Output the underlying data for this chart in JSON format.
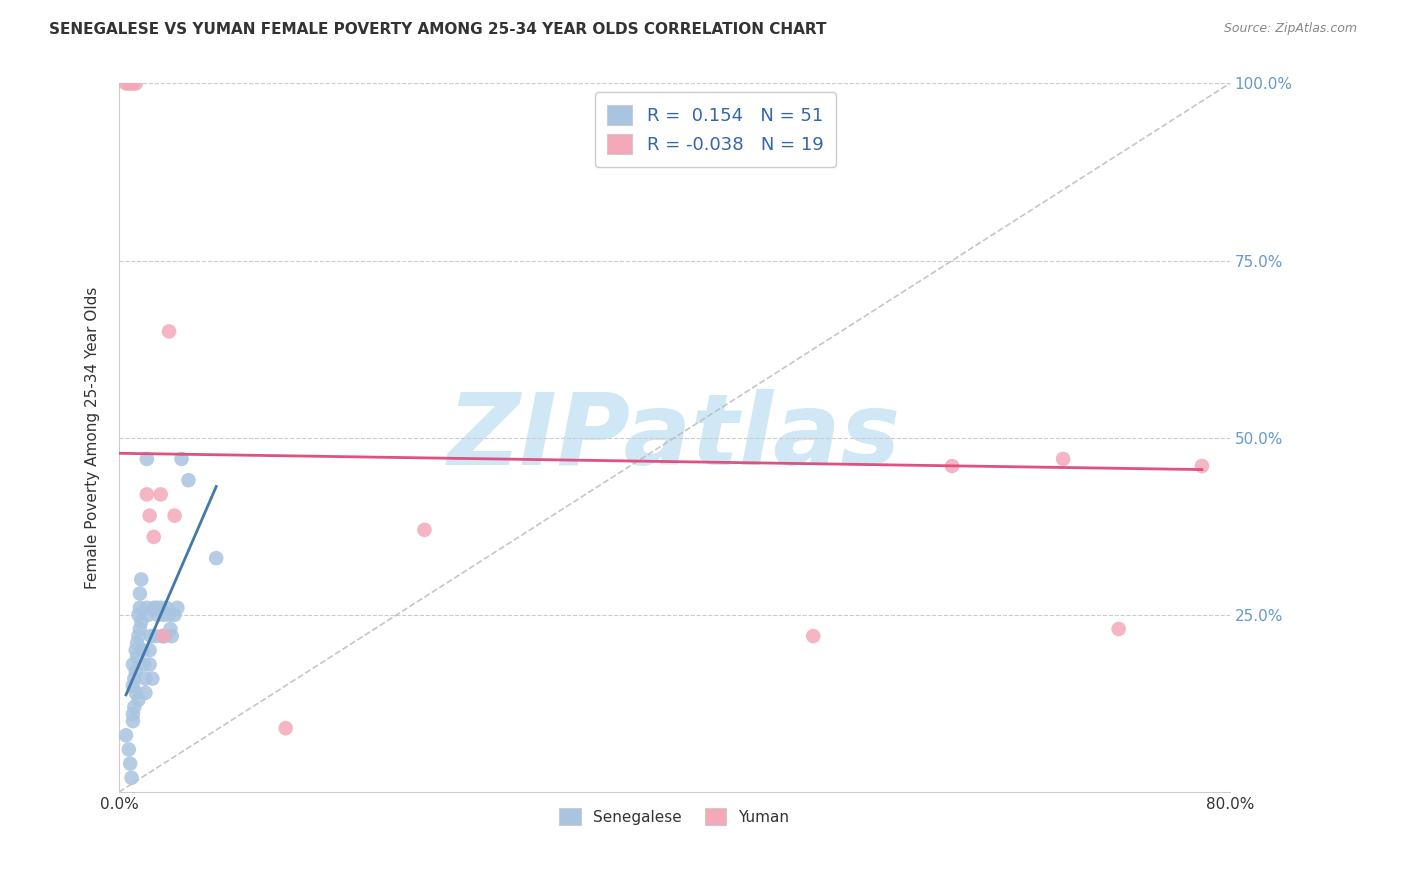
{
  "title": "SENEGALESE VS YUMAN FEMALE POVERTY AMONG 25-34 YEAR OLDS CORRELATION CHART",
  "source": "Source: ZipAtlas.com",
  "ylabel": "Female Poverty Among 25-34 Year Olds",
  "xlim": [
    0.0,
    0.8
  ],
  "ylim": [
    0.0,
    1.0
  ],
  "blue_color": "#a8c4e0",
  "pink_color": "#f4a8b8",
  "blue_line_color": "#4477aa",
  "pink_line_color": "#e05080",
  "diag_line_color": "#b8b8b8",
  "title_color": "#333333",
  "source_color": "#888888",
  "tick_label_color_right": "#6699cc",
  "legend_r1": "R =  0.154   N = 51",
  "legend_r2": "R = -0.038   N = 19",
  "legend_labels": [
    "Senegalese",
    "Yuman"
  ],
  "watermark": "ZIPatlas",
  "watermark_color": "#d0e8f5",
  "marker_size": 110,
  "senegalese_x": [
    0.005,
    0.007,
    0.008,
    0.009,
    0.01,
    0.01,
    0.01,
    0.01,
    0.011,
    0.011,
    0.012,
    0.012,
    0.012,
    0.013,
    0.013,
    0.014,
    0.014,
    0.014,
    0.015,
    0.015,
    0.015,
    0.016,
    0.016,
    0.017,
    0.018,
    0.019,
    0.019,
    0.02,
    0.02,
    0.021,
    0.022,
    0.022,
    0.023,
    0.024,
    0.025,
    0.026,
    0.027,
    0.028,
    0.03,
    0.031,
    0.032,
    0.033,
    0.034,
    0.036,
    0.037,
    0.038,
    0.04,
    0.042,
    0.045,
    0.05,
    0.07
  ],
  "senegalese_y": [
    0.08,
    0.06,
    0.04,
    0.02,
    0.1,
    0.11,
    0.15,
    0.18,
    0.12,
    0.16,
    0.14,
    0.17,
    0.2,
    0.19,
    0.21,
    0.13,
    0.22,
    0.25,
    0.23,
    0.26,
    0.28,
    0.24,
    0.3,
    0.2,
    0.18,
    0.16,
    0.14,
    0.26,
    0.47,
    0.25,
    0.2,
    0.18,
    0.22,
    0.16,
    0.26,
    0.22,
    0.26,
    0.25,
    0.26,
    0.22,
    0.25,
    0.22,
    0.26,
    0.25,
    0.23,
    0.22,
    0.25,
    0.26,
    0.47,
    0.44,
    0.33
  ],
  "yuman_x": [
    0.005,
    0.007,
    0.008,
    0.01,
    0.012,
    0.02,
    0.022,
    0.025,
    0.03,
    0.032,
    0.036,
    0.04,
    0.12,
    0.22,
    0.5,
    0.6,
    0.68,
    0.72,
    0.78
  ],
  "yuman_y": [
    1.0,
    1.0,
    1.0,
    1.0,
    1.0,
    0.42,
    0.39,
    0.36,
    0.42,
    0.22,
    0.65,
    0.39,
    0.09,
    0.37,
    0.22,
    0.46,
    0.47,
    0.23,
    0.46
  ],
  "blue_trendline_x": [
    0.005,
    0.07
  ],
  "pink_trendline_x": [
    0.0,
    0.78
  ],
  "pink_trendline_y": [
    0.478,
    0.455
  ]
}
